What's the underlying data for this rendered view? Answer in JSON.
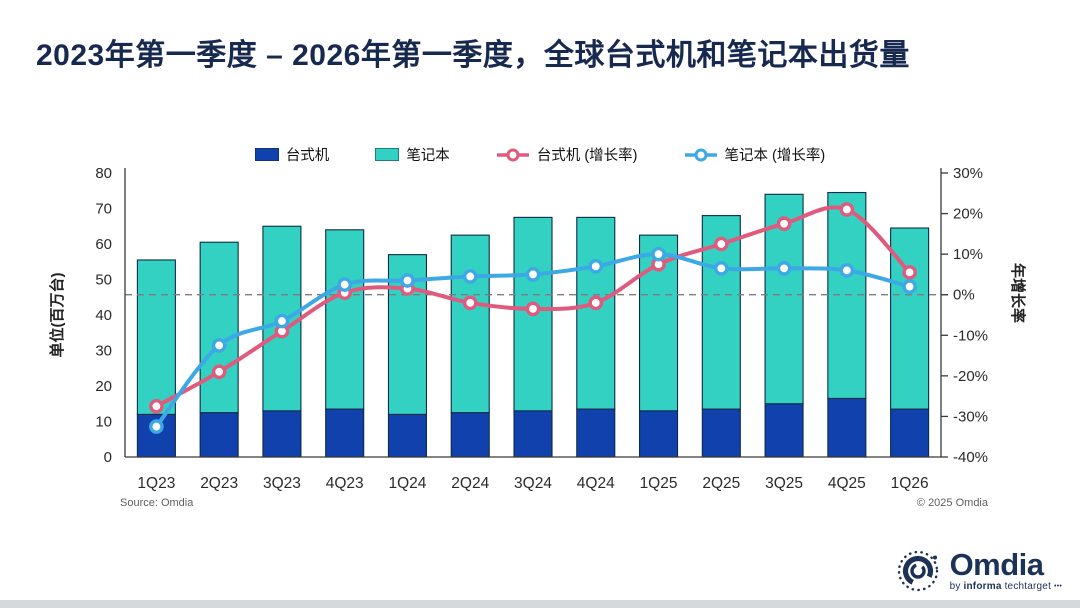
{
  "title": "2023年第一季度 – 2026年第一季度，全球台式机和笔记本出货量",
  "chart_data": {
    "type": "bar",
    "subtype": "stacked-bar-with-growth-lines",
    "categories": [
      "1Q23",
      "2Q23",
      "3Q23",
      "4Q23",
      "1Q24",
      "2Q24",
      "3Q24",
      "4Q24",
      "1Q25",
      "2Q25",
      "3Q25",
      "4Q25",
      "1Q26"
    ],
    "bar_series": [
      {
        "name": "台式机",
        "slug": "desktop",
        "color": "#1141ac",
        "values": [
          12,
          12.5,
          13,
          13.5,
          12,
          12.5,
          13,
          13.5,
          13,
          13.5,
          15,
          16.5,
          13.5
        ]
      },
      {
        "name": "笔记本",
        "slug": "notebook",
        "color": "#33d1c1",
        "values": [
          43.5,
          48,
          52,
          50.5,
          45,
          50,
          54.5,
          54,
          49.5,
          54.5,
          59,
          58,
          51
        ]
      }
    ],
    "line_series": [
      {
        "name": "台式机 (增长率)",
        "slug": "desktop-growth",
        "color": "#e05a7e",
        "values": [
          -27.5,
          -19,
          -9,
          0.5,
          1.5,
          -2,
          -3.5,
          -2,
          7.5,
          12.5,
          17.5,
          21,
          5.5
        ]
      },
      {
        "name": "笔记本 (增长率)",
        "slug": "notebook-growth",
        "color": "#3da8e6",
        "values": [
          -32.5,
          -12.5,
          -6.5,
          2.5,
          3.5,
          4.5,
          5,
          7,
          10,
          6.5,
          6.5,
          6,
          2
        ]
      }
    ],
    "left_axis": {
      "title": "单位(百万台)",
      "min": 0,
      "max": 80,
      "step": 10,
      "ticks": [
        "0",
        "10",
        "20",
        "30",
        "40",
        "50",
        "60",
        "70",
        "80"
      ]
    },
    "right_axis": {
      "title": "年增长率",
      "min": -40,
      "max": 30,
      "step": 10,
      "ticks": [
        "-40%",
        "-30%",
        "-20%",
        "-10%",
        "0%",
        "10%",
        "20%",
        "30%"
      ]
    },
    "zero_line_at_pct": 0,
    "grid": false,
    "legend_position": "top"
  },
  "footer": {
    "source": "Source: Omdia",
    "copyright": "© 2025 Omdia"
  },
  "logo": {
    "name": "Omdia",
    "byline_prefix": "by",
    "byline_bold": "informa",
    "byline_suffix": "techtarget",
    "byline_dots": "•••",
    "color": "#1d3258"
  }
}
